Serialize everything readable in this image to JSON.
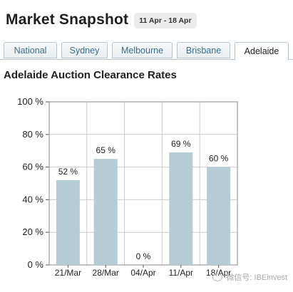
{
  "header": {
    "title": "Market Snapshot",
    "date_range": "11 Apr - 18 Apr"
  },
  "tabs": [
    {
      "label": "National",
      "active": false
    },
    {
      "label": "Sydney",
      "active": false
    },
    {
      "label": "Melbourne",
      "active": false
    },
    {
      "label": "Brisbane",
      "active": false
    },
    {
      "label": "Adelaide",
      "active": true
    }
  ],
  "watermark": "微信号: IBEinvest",
  "chart_data": {
    "type": "bar",
    "title": "Adelaide Auction Clearance Rates",
    "categories": [
      "21/Mar",
      "28/Mar",
      "04/Apr",
      "11/Apr",
      "18/Apr"
    ],
    "values": [
      52,
      65,
      0,
      69,
      60
    ],
    "data_labels": [
      "52 %",
      "65 %",
      "0 %",
      "69 %",
      "60 %"
    ],
    "y_ticks": [
      0,
      20,
      40,
      60,
      80,
      100
    ],
    "y_tick_labels": [
      "0 %",
      "20 %",
      "40 %",
      "60 %",
      "80 %",
      "100 %"
    ],
    "ylim": [
      0,
      100
    ],
    "xlabel": "",
    "ylabel": "",
    "grid": true,
    "bar_color": "#b5ccd4",
    "grid_color": "#cccccc"
  }
}
